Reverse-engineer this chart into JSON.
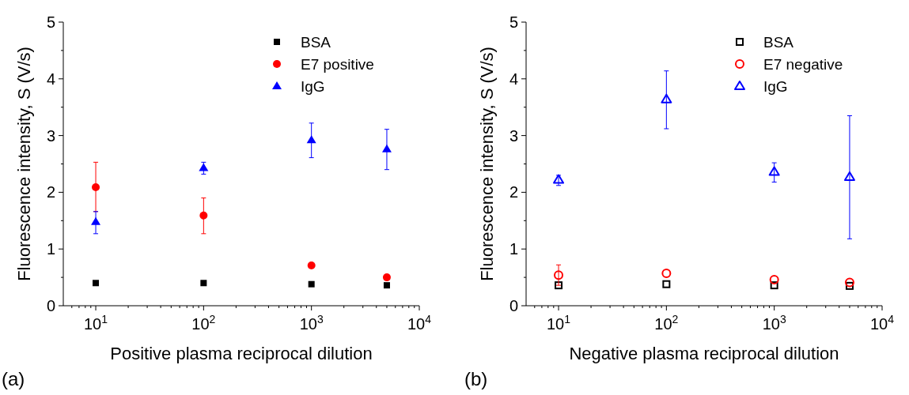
{
  "chart_data": [
    {
      "type": "scatter",
      "xlabel": "Positive plasma reciprocal dilution",
      "ylabel": "Fluorescence intensity, S (V/s)",
      "log": "x",
      "xlim": [
        5,
        10000
      ],
      "xticks": [
        {
          "value": 10,
          "label": "10$^{1}$"
        },
        {
          "value": 100,
          "label": "10$^{2}$"
        },
        {
          "value": 1000,
          "label": "10$^{3}$"
        },
        {
          "value": 10000,
          "label": "10$^{4}$"
        }
      ],
      "ylim": [
        0,
        5
      ],
      "yticks": [
        0,
        1,
        2,
        3,
        4,
        5
      ],
      "x": [
        10,
        100,
        1000,
        5000
      ],
      "legend": "top right",
      "grid": false,
      "annotations": [
        "(a)"
      ],
      "series": [
        {
          "name": "BSA",
          "color": "#000000",
          "marker": "square",
          "values": [
            0.4,
            0.4,
            0.38,
            0.36
          ]
        },
        {
          "name": "E7 positive",
          "color": "#ff0000",
          "marker": "circle",
          "values": [
            2.09,
            1.59,
            0.71,
            0.5
          ],
          "errors": [
            [
              1.66,
              2.53
            ],
            [
              1.27,
              1.9
            ],
            null,
            null
          ]
        },
        {
          "name": "IgG",
          "color": "#0000ff",
          "marker": "triangle",
          "values": [
            1.48,
            2.43,
            2.92,
            2.76
          ],
          "errors": [
            [
              1.27,
              1.66
            ],
            [
              2.32,
              2.53
            ],
            [
              2.61,
              3.22
            ],
            [
              2.4,
              3.11
            ]
          ]
        }
      ]
    },
    {
      "type": "scatter",
      "xlabel": "Negative plasma reciprocal dilution",
      "ylabel": "Fluorescence intensity, S (V/s)",
      "log": "x",
      "xlim": [
        5,
        10000
      ],
      "xticks": [
        {
          "value": 10,
          "label": "10$^{1}$"
        },
        {
          "value": 100,
          "label": "10$^{2}$"
        },
        {
          "value": 1000,
          "label": "10$^{3}$"
        },
        {
          "value": 10000,
          "label": "10$^{4}$"
        }
      ],
      "ylim": [
        0,
        5
      ],
      "yticks": [
        0,
        1,
        2,
        3,
        4,
        5
      ],
      "x": [
        10,
        100,
        1000,
        5000
      ],
      "legend": "top right",
      "grid": false,
      "annotations": [
        "(b)"
      ],
      "series": [
        {
          "name": "BSA",
          "color": "#000000",
          "marker": "square",
          "values": [
            0.36,
            0.38,
            0.36,
            0.35
          ]
        },
        {
          "name": "E7 negative",
          "color": "#ff0000",
          "marker": "circle",
          "values": [
            0.54,
            0.57,
            0.46,
            0.41
          ],
          "errors": [
            [
              0.36,
              0.72
            ],
            null,
            null,
            null
          ]
        },
        {
          "name": "IgG",
          "color": "#0000ff",
          "marker": "triangle",
          "values": [
            2.22,
            3.64,
            2.36,
            2.27
          ],
          "errors": [
            [
              2.12,
              2.3
            ],
            [
              3.12,
              4.14
            ],
            [
              2.18,
              2.52
            ],
            [
              1.18,
              3.35
            ]
          ]
        }
      ]
    }
  ]
}
